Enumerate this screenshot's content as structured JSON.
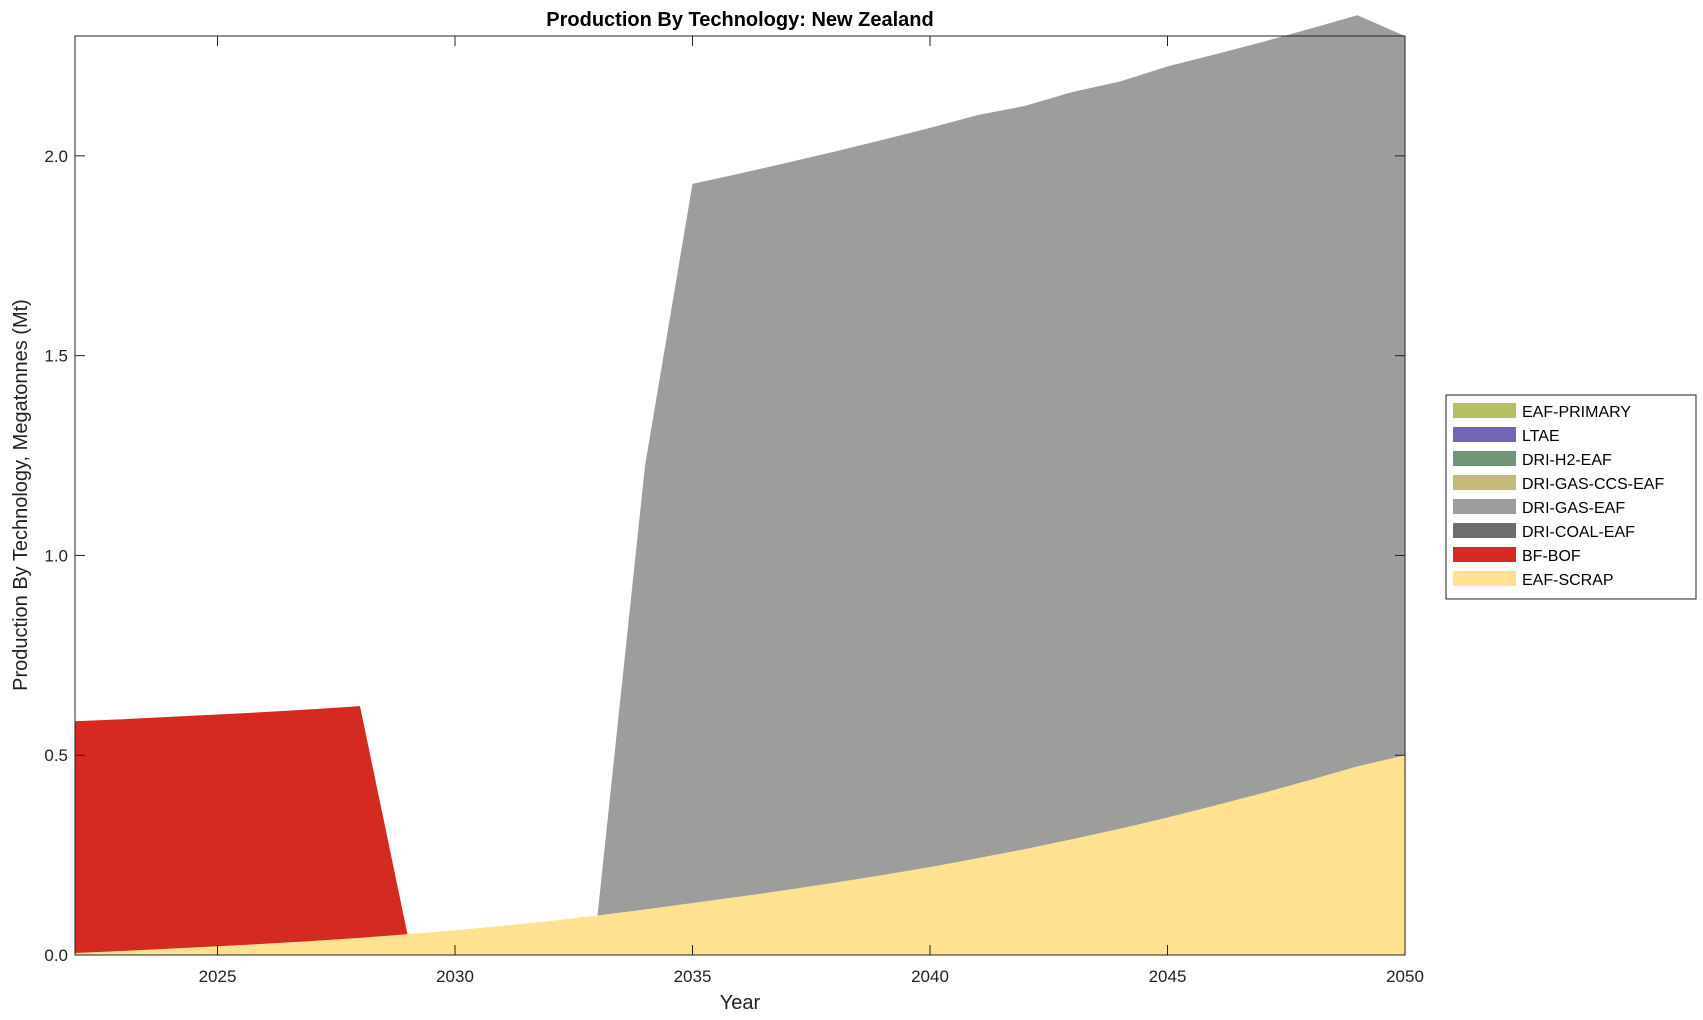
{
  "chart_data": {
    "type": "area",
    "title": "Production By Technology: New Zealand",
    "xlabel": "Year",
    "ylabel": "Production By Technology, Megatonnes (Mt)",
    "xlim": [
      2022,
      2050
    ],
    "ylim": [
      0,
      2.3
    ],
    "xticks": [
      "2025",
      "2030",
      "2035",
      "2040",
      "2045",
      "2050"
    ],
    "xtick_values": [
      2025,
      2030,
      2035,
      2040,
      2045,
      2050
    ],
    "yticks": [
      "0.0",
      "0.5",
      "1.0",
      "1.5",
      "2.0"
    ],
    "ytick_values": [
      0,
      0.5,
      1.0,
      1.5,
      2.0
    ],
    "grid": false,
    "legend_position": "right",
    "x": [
      2022,
      2023,
      2024,
      2025,
      2026,
      2027,
      2028,
      2029,
      2030,
      2031,
      2032,
      2033,
      2034,
      2035,
      2036,
      2037,
      2038,
      2039,
      2040,
      2041,
      2042,
      2043,
      2044,
      2045,
      2046,
      2047,
      2048,
      2049,
      2050
    ],
    "series": [
      {
        "name": "EAF-PRIMARY",
        "color": "#b5bf63",
        "values": [
          0,
          0,
          0,
          0,
          0,
          0,
          0,
          0,
          0,
          0,
          0,
          0,
          0,
          0,
          0,
          0,
          0,
          0,
          0,
          0,
          0,
          0,
          0,
          0,
          0,
          0,
          0,
          0,
          0
        ]
      },
      {
        "name": "LTAE",
        "color": "#7364b8",
        "values": [
          0,
          0,
          0,
          0,
          0,
          0,
          0,
          0,
          0,
          0,
          0,
          0,
          0,
          0,
          0,
          0,
          0,
          0,
          0,
          0,
          0,
          0,
          0,
          0,
          0,
          0,
          0,
          0,
          0
        ]
      },
      {
        "name": "DRI-H2-EAF",
        "color": "#72957a",
        "values": [
          0,
          0,
          0,
          0,
          0,
          0,
          0,
          0,
          0,
          0,
          0,
          0,
          0,
          0,
          0,
          0,
          0,
          0,
          0,
          0,
          0,
          0,
          0,
          0,
          0,
          0,
          0,
          0,
          0
        ]
      },
      {
        "name": "DRI-GAS-CCS-EAF",
        "color": "#c4bb7b",
        "values": [
          0,
          0,
          0,
          0,
          0,
          0,
          0,
          0,
          0,
          0,
          0,
          0,
          0,
          0,
          0,
          0,
          0,
          0,
          0,
          0,
          0,
          0,
          0,
          0,
          0,
          0,
          0,
          0,
          0
        ]
      },
      {
        "name": "DRI-GAS-EAF",
        "color": "#9d9d9b",
        "values": [
          0,
          0,
          0,
          0,
          0,
          0,
          0,
          0,
          0,
          0,
          0,
          0,
          1.11,
          1.8,
          1.81,
          1.82,
          1.83,
          1.84,
          1.85,
          1.86,
          1.86,
          1.87,
          1.87,
          1.88,
          1.88,
          1.88,
          1.88,
          1.88,
          1.8
        ]
      },
      {
        "name": "DRI-COAL-EAF",
        "color": "#6d6d6d",
        "values": [
          0,
          0,
          0,
          0,
          0,
          0,
          0,
          0,
          0,
          0,
          0,
          0,
          0,
          0,
          0,
          0,
          0,
          0,
          0,
          0,
          0,
          0,
          0,
          0,
          0,
          0,
          0,
          0,
          0
        ]
      },
      {
        "name": "BF-BOF",
        "color": "#d42a22",
        "values": [
          0.58,
          0.58,
          0.58,
          0.58,
          0.58,
          0.58,
          0.58,
          0,
          0,
          0,
          0,
          0,
          0,
          0,
          0,
          0,
          0,
          0,
          0,
          0,
          0,
          0,
          0,
          0,
          0,
          0,
          0,
          0,
          0
        ]
      },
      {
        "name": "EAF-SCRAP",
        "color": "#fee292",
        "values": [
          0.005,
          0.01,
          0.016,
          0.022,
          0.028,
          0.035,
          0.043,
          0.052,
          0.062,
          0.073,
          0.085,
          0.099,
          0.114,
          0.13,
          0.146,
          0.163,
          0.181,
          0.2,
          0.22,
          0.242,
          0.265,
          0.29,
          0.316,
          0.344,
          0.374,
          0.405,
          0.438,
          0.472,
          0.5
        ]
      }
    ]
  }
}
